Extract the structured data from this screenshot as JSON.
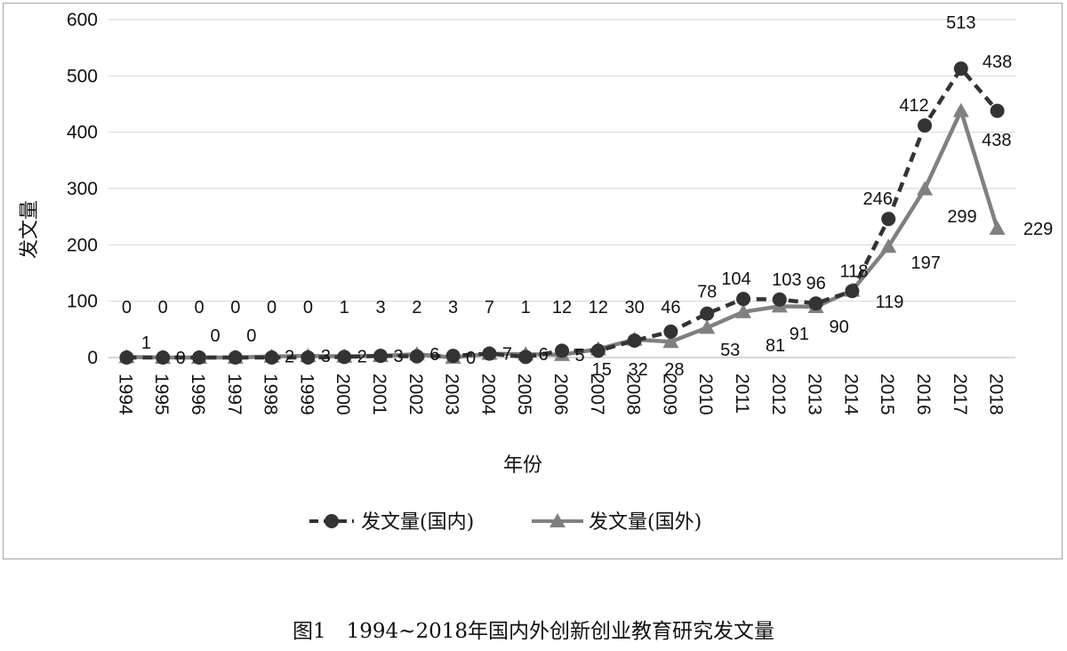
{
  "caption": "图1　1994~2018年国内外创新创业教育研究发文量",
  "chart_data": {
    "type": "line",
    "x": [
      "1994",
      "1995",
      "1996",
      "1997",
      "1998",
      "1999",
      "2000",
      "2001",
      "2002",
      "2003",
      "2004",
      "2005",
      "2006",
      "2007",
      "2008",
      "2009",
      "2010",
      "2011",
      "2012",
      "2013",
      "2014",
      "2015",
      "2016",
      "2017",
      "2018"
    ],
    "series": [
      {
        "name": "发文量(国内)",
        "values": [
          0,
          0,
          0,
          0,
          0,
          0,
          1,
          3,
          2,
          3,
          7,
          1,
          12,
          12,
          30,
          46,
          78,
          104,
          103,
          96,
          118,
          246,
          412,
          513,
          438
        ],
        "style": "dashed",
        "marker": "circle",
        "color": "#333333"
      },
      {
        "name": "发文量(国外)",
        "values": [
          1,
          0,
          0,
          0,
          2,
          3,
          2,
          3,
          6,
          0,
          7,
          6,
          5,
          15,
          32,
          28,
          53,
          81,
          91,
          90,
          119,
          197,
          299,
          438,
          229
        ],
        "style": "solid",
        "marker": "triangle",
        "color": "#808080"
      }
    ],
    "xlabel": "年份",
    "ylabel": "发文量",
    "yticks": [
      "0",
      "100",
      "200",
      "300",
      "400",
      "500",
      "600"
    ],
    "ylim": [
      0,
      600
    ],
    "grid": true,
    "legend": "bottom"
  }
}
